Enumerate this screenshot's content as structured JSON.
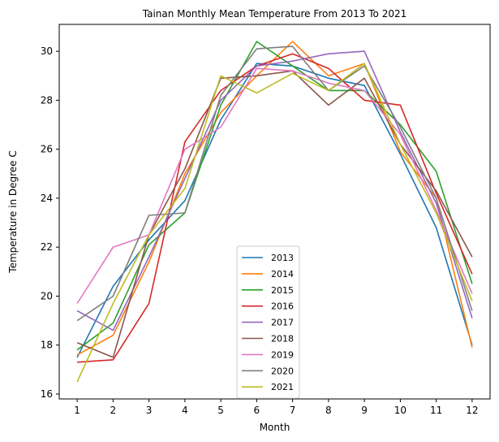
{
  "chart_data": {
    "type": "line",
    "title": "Tainan Monthly Mean Temperature From 2013 To 2021",
    "xlabel": "Month",
    "ylabel": "Temperature in Degree C",
    "x": [
      1,
      2,
      3,
      4,
      5,
      6,
      7,
      8,
      9,
      10,
      11,
      12
    ],
    "x_ticks": [
      "1",
      "2",
      "3",
      "4",
      "5",
      "6",
      "7",
      "8",
      "9",
      "10",
      "11",
      "12"
    ],
    "y_ticks": [
      "16",
      "18",
      "20",
      "22",
      "24",
      "26",
      "28",
      "30"
    ],
    "y_tick_values": [
      16,
      18,
      20,
      22,
      24,
      26,
      28,
      30
    ],
    "xlim": [
      0.5,
      12.5
    ],
    "ylim": [
      15.8,
      31.1
    ],
    "grid": false,
    "legend_position": "bottom-center",
    "series": [
      {
        "name": "2013",
        "color": "#1f77b4",
        "values": [
          17.5,
          20.4,
          22.3,
          23.9,
          27.2,
          29.5,
          29.4,
          28.9,
          28.6,
          25.8,
          22.8,
          18.0
        ]
      },
      {
        "name": "2014",
        "color": "#ff7f0e",
        "values": [
          17.6,
          18.4,
          21.4,
          25.0,
          27.5,
          29.0,
          30.4,
          29.0,
          29.5,
          25.9,
          24.0,
          17.9
        ]
      },
      {
        "name": "2015",
        "color": "#2ca02c",
        "values": [
          17.8,
          18.9,
          22.1,
          23.4,
          27.8,
          30.4,
          29.4,
          28.4,
          28.4,
          27.0,
          25.1,
          20.5
        ]
      },
      {
        "name": "2016",
        "color": "#d62728",
        "values": [
          17.3,
          17.4,
          19.7,
          26.3,
          28.4,
          29.4,
          29.9,
          29.3,
          28.0,
          27.8,
          24.2,
          20.9
        ]
      },
      {
        "name": "2017",
        "color": "#9467bd",
        "values": [
          19.4,
          18.6,
          21.6,
          24.8,
          28.0,
          29.4,
          29.6,
          29.9,
          30.0,
          26.7,
          23.8,
          19.1
        ]
      },
      {
        "name": "2018",
        "color": "#8c564b",
        "values": [
          18.1,
          17.5,
          22.5,
          25.2,
          28.9,
          29.0,
          29.2,
          27.8,
          28.9,
          26.2,
          24.3,
          21.6
        ]
      },
      {
        "name": "2019",
        "color": "#e377c2",
        "values": [
          19.7,
          22.0,
          22.5,
          26.0,
          26.9,
          29.3,
          29.2,
          28.7,
          28.4,
          26.6,
          23.5,
          20.1
        ]
      },
      {
        "name": "2020",
        "color": "#7f7f7f",
        "values": [
          19.0,
          20.0,
          23.3,
          23.4,
          28.2,
          30.1,
          30.2,
          28.4,
          29.4,
          26.9,
          24.0,
          19.4
        ]
      },
      {
        "name": "2021",
        "color": "#bcbd22",
        "values": [
          16.5,
          19.7,
          22.5,
          24.4,
          29.0,
          28.3,
          29.1,
          28.4,
          29.5,
          26.2,
          23.4,
          19.8
        ]
      }
    ]
  }
}
